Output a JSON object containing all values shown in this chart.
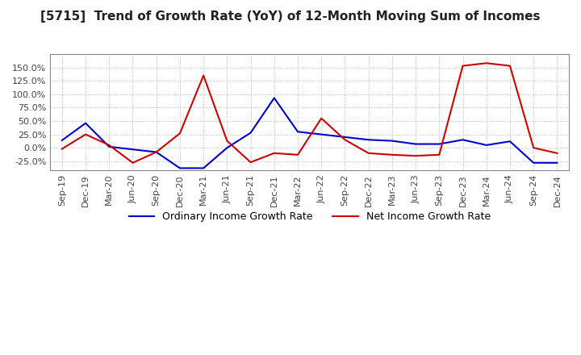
{
  "title": "[5715]  Trend of Growth Rate (YoY) of 12-Month Moving Sum of Incomes",
  "title_fontsize": 11,
  "x_labels": [
    "Sep-19",
    "Dec-19",
    "Mar-20",
    "Jun-20",
    "Sep-20",
    "Dec-20",
    "Mar-21",
    "Jun-21",
    "Sep-21",
    "Dec-21",
    "Mar-22",
    "Jun-22",
    "Sep-22",
    "Dec-22",
    "Mar-23",
    "Jun-23",
    "Sep-23",
    "Dec-23",
    "Mar-24",
    "Jun-24",
    "Sep-24",
    "Dec-24"
  ],
  "ordinary_income": [
    0.14,
    0.46,
    0.02,
    -0.03,
    -0.08,
    -0.38,
    -0.38,
    0.0,
    0.28,
    0.93,
    0.3,
    0.25,
    0.2,
    0.15,
    0.13,
    0.07,
    0.07,
    0.15,
    0.05,
    0.12,
    -0.28,
    -0.28
  ],
  "net_income": [
    -0.02,
    0.25,
    0.05,
    -0.28,
    -0.08,
    0.27,
    1.35,
    0.13,
    -0.27,
    -0.1,
    -0.13,
    0.55,
    0.15,
    -0.1,
    -0.13,
    -0.15,
    -0.13,
    1.53,
    1.58,
    1.53,
    0.0,
    -0.1
  ],
  "ordinary_color": "#0000cc",
  "net_color": "#cc0000",
  "background_color": "#ffffff",
  "grid_color": "#aaaaaa",
  "yticks": [
    -0.25,
    0.0,
    0.25,
    0.5,
    0.75,
    1.0,
    1.25,
    1.5
  ],
  "ylim": [
    -0.42,
    1.75
  ],
  "legend_labels": [
    "Ordinary Income Growth Rate",
    "Net Income Growth Rate"
  ]
}
